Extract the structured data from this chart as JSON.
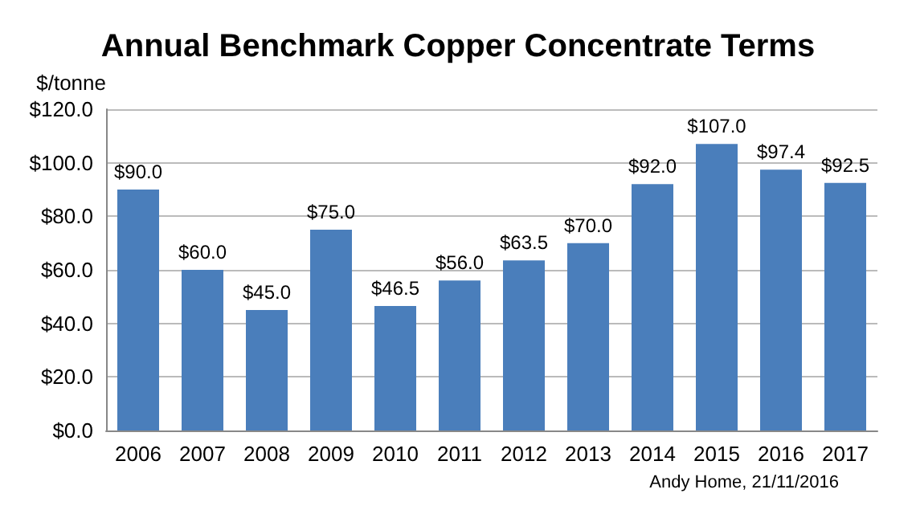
{
  "chart_data": {
    "type": "bar",
    "title": "Annual Benchmark Copper Concentrate Terms",
    "ylabel": "$/tonne",
    "categories": [
      "2006",
      "2007",
      "2008",
      "2009",
      "2010",
      "2011",
      "2012",
      "2013",
      "2014",
      "2015",
      "2016",
      "2017"
    ],
    "values": [
      90,
      60,
      45,
      75,
      46.5,
      56,
      63.5,
      70,
      92,
      107,
      97.4,
      92.5
    ],
    "value_labels": [
      "$90.0",
      "$60.0",
      "$45.0",
      "$75.0",
      "$46.5",
      "$56.0",
      "$63.5",
      "$70.0",
      "$92.0",
      "$107.0",
      "$97.4",
      "$92.5"
    ],
    "color": "#4a7ebb",
    "ylim": [
      0,
      120
    ],
    "yticks": [
      {
        "value": 0,
        "label": "$0.0"
      },
      {
        "value": 20,
        "label": "$20.0"
      },
      {
        "value": 40,
        "label": "$40.0"
      },
      {
        "value": 60,
        "label": "$60.0"
      },
      {
        "value": 80,
        "label": "$80.0"
      },
      {
        "value": 100,
        "label": "$100.0"
      },
      {
        "value": 120,
        "label": "$120.0"
      }
    ],
    "grid": "y",
    "annotations": [
      "Andy Home, 21/11/2016"
    ]
  }
}
